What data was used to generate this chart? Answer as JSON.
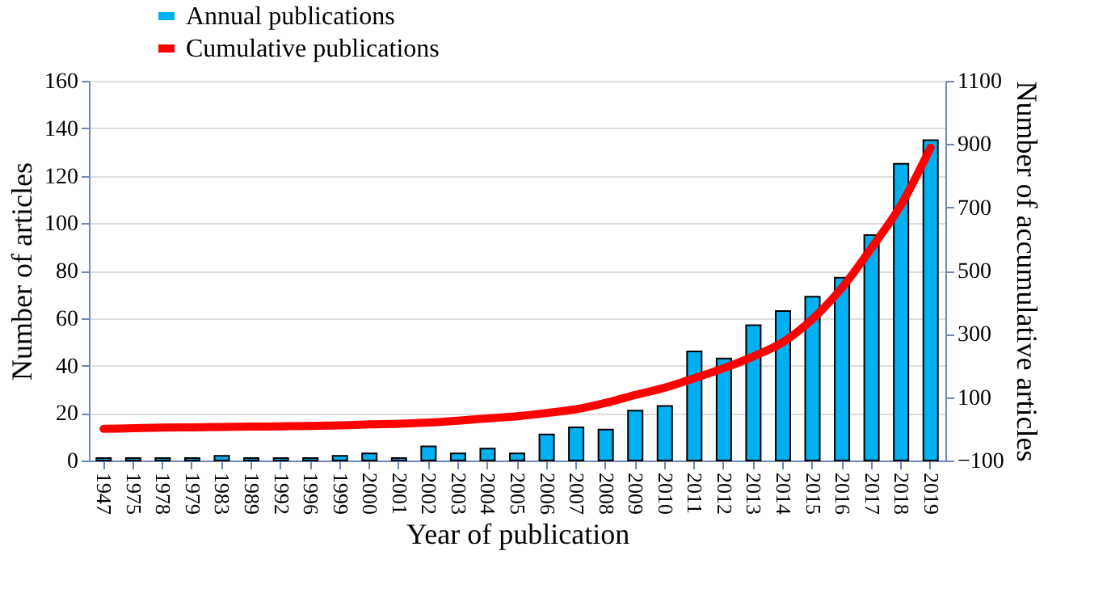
{
  "chart_data": {
    "type": "bar",
    "xlabel": "Year of publication",
    "ylabel": "Number of articles",
    "y2label": "Number of accumulative articles",
    "categories": [
      "1947",
      "1975",
      "1978",
      "1979",
      "1983",
      "1989",
      "1992",
      "1996",
      "1999",
      "2000",
      "2001",
      "2002",
      "2003",
      "2004",
      "2005",
      "2006",
      "2007",
      "2008",
      "2009",
      "2010",
      "2011",
      "2012",
      "2013",
      "2014",
      "2015",
      "2016",
      "2017",
      "2018",
      "2019"
    ],
    "series": [
      {
        "name": "Annual publications",
        "color": "#00b0f0",
        "values": [
          1,
          1,
          1,
          1,
          2,
          1,
          1,
          1,
          2,
          3,
          1,
          6,
          3,
          5,
          3,
          11,
          14,
          13,
          21,
          23,
          46,
          43,
          57,
          63,
          69,
          77,
          95,
          125,
          135
        ]
      },
      {
        "name": "Cumulative publications",
        "color": "#ff0000",
        "type": "line",
        "axis": "y2",
        "values": [
          0,
          2,
          4,
          5,
          6,
          7,
          8,
          9,
          11,
          14,
          16,
          20,
          26,
          33,
          40,
          50,
          62,
          82,
          107,
          130,
          160,
          192,
          229,
          274,
          347,
          446,
          572,
          708,
          889
        ]
      }
    ],
    "ylim": [
      0,
      160
    ],
    "yticks": [
      0,
      20,
      40,
      60,
      80,
      100,
      120,
      140,
      160
    ],
    "y2lim": [
      -100,
      1100
    ],
    "y2ticks": [
      -100,
      100,
      300,
      500,
      700,
      900,
      1100
    ],
    "grid": "y",
    "legend": "top left",
    "line_style": "solid",
    "marker": "none"
  }
}
